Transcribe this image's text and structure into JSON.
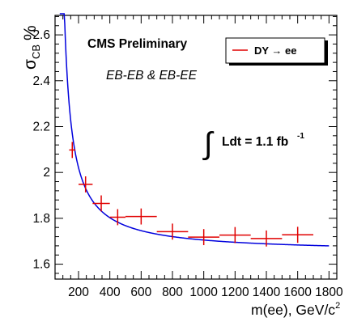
{
  "chart_data": {
    "type": "scatter",
    "ylabel": "σ_CB %",
    "xlabel": "m(ee), GeV/c²",
    "xlim": [
      50,
      1850
    ],
    "ylim": [
      1.535,
      2.685
    ],
    "xticks": [
      200,
      400,
      600,
      800,
      1000,
      1200,
      1400,
      1600,
      1800
    ],
    "yticks": [
      1.6,
      1.8,
      2.0,
      2.2,
      2.4,
      2.6
    ],
    "ytick_labels": [
      "1.6",
      "1.8",
      "2",
      "2.2",
      "2.4",
      "2.6"
    ],
    "grid": false,
    "annotations": {
      "header": "CMS Preliminary",
      "subheader": "EB-EB & EB-EE",
      "luminosity": "∫ Ldt = 1.1 fb⁻¹",
      "legend_series": "DY → ee"
    },
    "series": [
      {
        "name": "DY → ee",
        "color": "#e00000",
        "points": [
          {
            "x": 160,
            "y": 2.098,
            "xerr": 20,
            "yerr": 0.035
          },
          {
            "x": 245,
            "y": 1.948,
            "xerr": 45,
            "yerr": 0.035
          },
          {
            "x": 345,
            "y": 1.865,
            "xerr": 55,
            "yerr": 0.035
          },
          {
            "x": 450,
            "y": 1.805,
            "xerr": 50,
            "yerr": 0.035
          },
          {
            "x": 600,
            "y": 1.808,
            "xerr": 100,
            "yerr": 0.035
          },
          {
            "x": 800,
            "y": 1.742,
            "xerr": 100,
            "yerr": 0.035
          },
          {
            "x": 1000,
            "y": 1.718,
            "xerr": 100,
            "yerr": 0.035
          },
          {
            "x": 1200,
            "y": 1.727,
            "xerr": 100,
            "yerr": 0.035
          },
          {
            "x": 1400,
            "y": 1.712,
            "xerr": 100,
            "yerr": 0.035
          },
          {
            "x": 1600,
            "y": 1.728,
            "xerr": 100,
            "yerr": 0.035
          }
        ]
      }
    ],
    "fit": {
      "color": "#0000dd",
      "x_range": [
        80,
        1800
      ],
      "form": "a + b / (x - c)",
      "a": 1.65,
      "b": 51.92,
      "c": 60
    }
  }
}
